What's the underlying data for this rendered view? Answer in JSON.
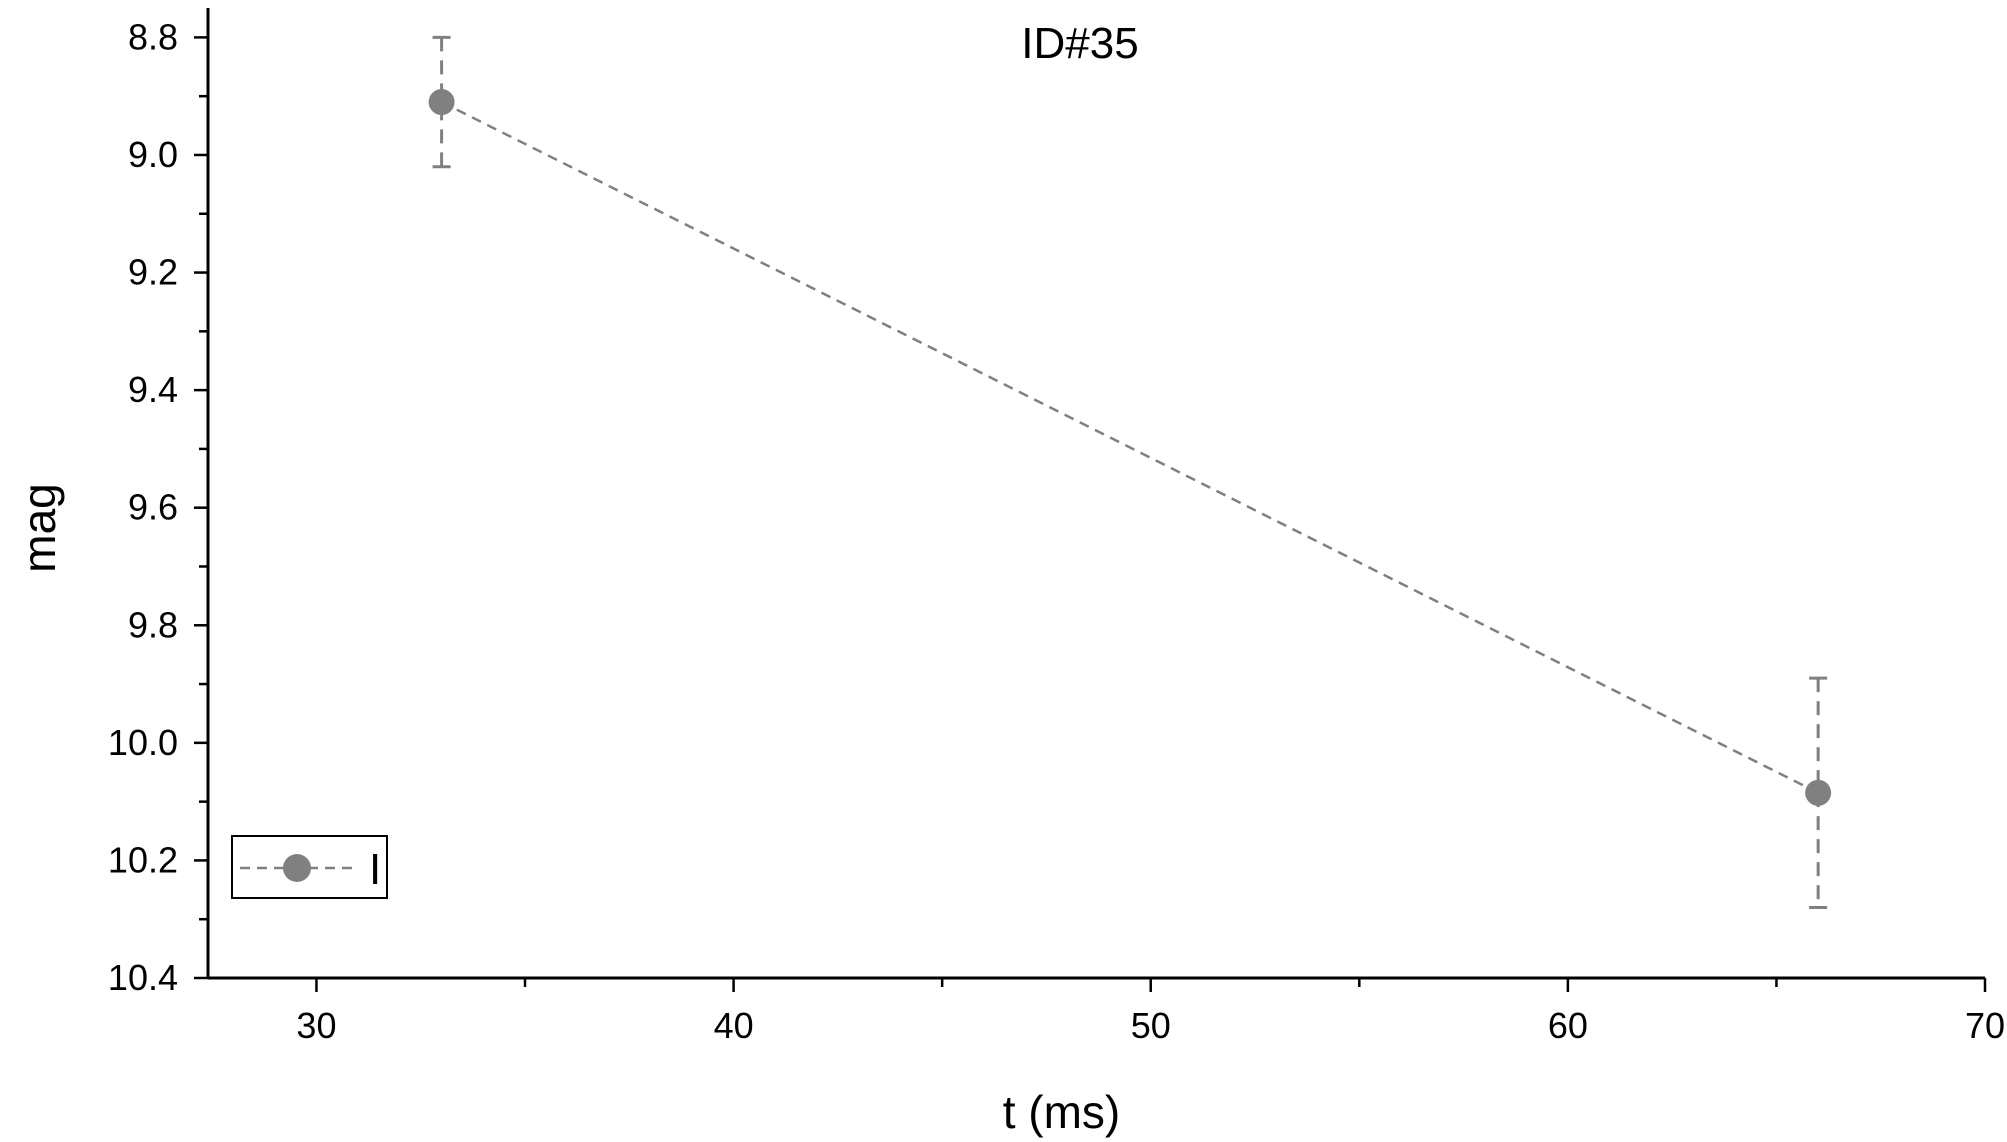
{
  "chart_data": {
    "type": "scatter",
    "title": "ID#35",
    "xlabel": "t (ms)",
    "ylabel": "mag",
    "xlim": [
      27.4,
      70
    ],
    "ylim": [
      8.75,
      10.4
    ],
    "y_inverted": true,
    "x_ticks": [
      "30",
      "40",
      "50",
      "60",
      "70"
    ],
    "y_ticks": [
      "8.8",
      "9.0",
      "9.2",
      "9.4",
      "9.6",
      "9.8",
      "10.0",
      "10.2",
      "10.4"
    ],
    "grid": false,
    "legend_position": "bottom-left",
    "series": [
      {
        "name": "I",
        "color": "#808080",
        "line_style": "dashed",
        "marker": "circle",
        "x": [
          33,
          66
        ],
        "y": [
          8.91,
          10.085
        ],
        "y_err_low": [
          8.8,
          9.89
        ],
        "y_err_high": [
          9.02,
          10.28
        ]
      }
    ]
  }
}
